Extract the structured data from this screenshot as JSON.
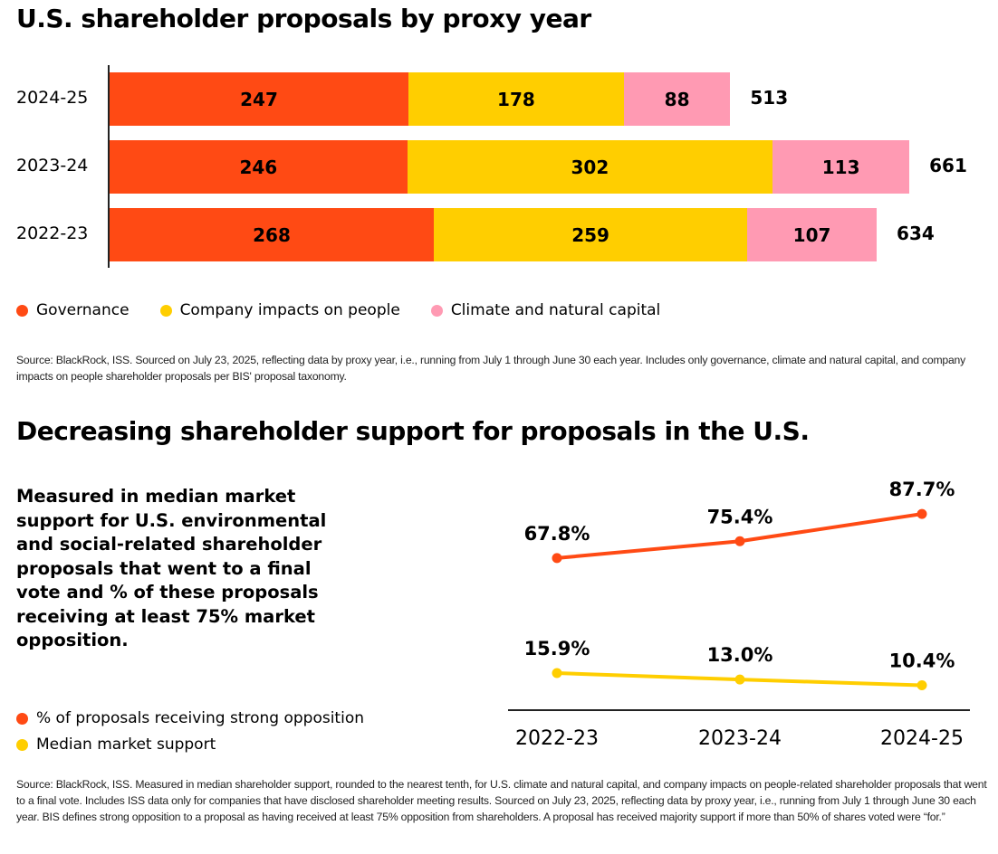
{
  "chart_data": [
    {
      "type": "bar",
      "stacked": true,
      "orientation": "horizontal",
      "title": "U.S. shareholder proposals by proxy year",
      "categories": [
        "2024-25",
        "2023-24",
        "2022-23"
      ],
      "series": [
        {
          "name": "Governance",
          "color": "#FF4A14",
          "values": [
            247,
            246,
            268
          ]
        },
        {
          "name": "Company impacts on people",
          "color": "#FFCE00",
          "values": [
            178,
            302,
            259
          ]
        },
        {
          "name": "Climate and natural capital",
          "color": "#FF9AB3",
          "values": [
            88,
            113,
            107
          ]
        }
      ],
      "totals": [
        513,
        661,
        634
      ],
      "legend": "bottom-left",
      "source": "Source: BlackRock, ISS. Sourced on July 23, 2025, reflecting data by proxy year, i.e., running from July 1 through June 30 each year. Includes only governance, climate and natural capital, and company impacts on people shareholder proposals per BIS' proposal taxonomy."
    },
    {
      "type": "line",
      "title": "Decreasing shareholder support for proposals in the U.S.",
      "description": "Measured in median market support for U.S. environmental and social-related shareholder proposals that went to a final vote and % of these proposals receiving at least 75% market opposition.",
      "x": [
        "2022-23",
        "2023-24",
        "2024-25"
      ],
      "series": [
        {
          "name": "% of proposals receiving strong opposition",
          "color": "#FF4A14",
          "values": [
            67.8,
            75.4,
            87.7
          ],
          "labels": [
            "67.8%",
            "75.4%",
            "87.7%"
          ]
        },
        {
          "name": "Median market support",
          "color": "#FFCE00",
          "values": [
            15.9,
            13.0,
            10.4
          ],
          "labels": [
            "15.9%",
            "13.0%",
            "10.4%"
          ]
        }
      ],
      "legend": "bottom-left",
      "source": "Source: BlackRock, ISS. Measured in median shareholder support, rounded to the nearest tenth, for U.S. climate and natural capital, and company impacts on people-related shareholder proposals that went to a final vote. Includes ISS data only for companies that have disclosed shareholder meeting results. Sourced on July 23, 2025, reflecting data by proxy year, i.e., running from July 1 through June 30 each year. BIS defines strong opposition to a proposal as having received at least 75% opposition from shareholders. A proposal has received majority support if more than 50% of shares voted were “for.”"
    }
  ]
}
